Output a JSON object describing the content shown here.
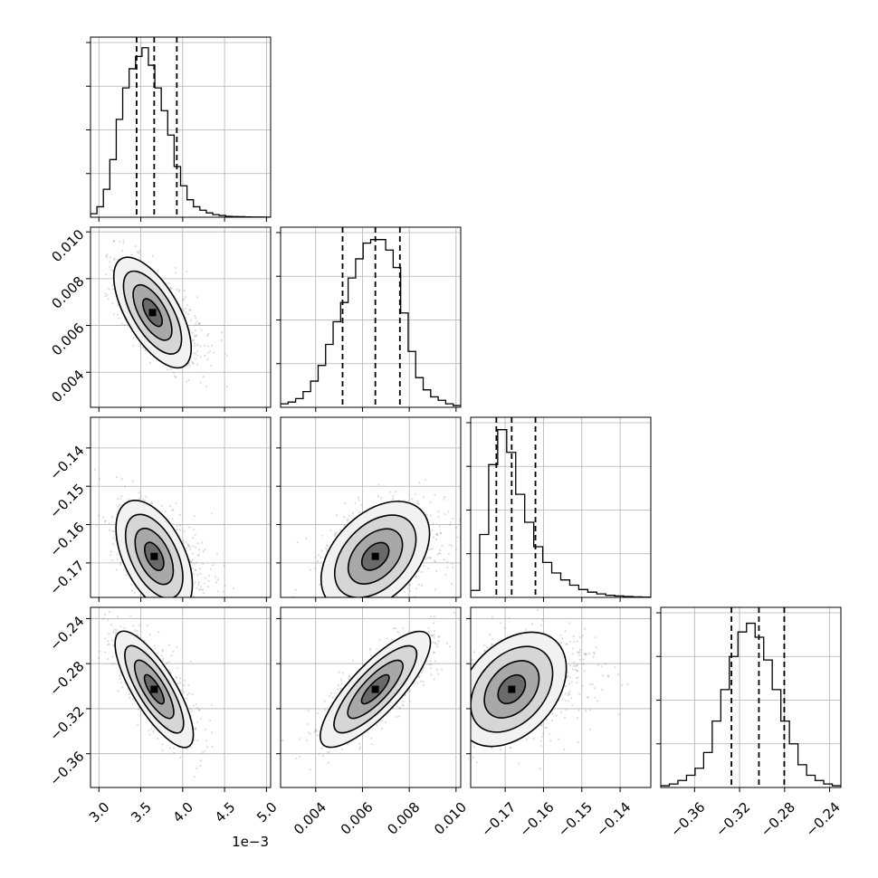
{
  "chart_data": {
    "type": "corner",
    "parameters": [
      {
        "name": "",
        "range": [
          2.9,
          5.05
        ],
        "scale_label": "1e−3",
        "ticks": [
          3.0,
          3.5,
          4.0,
          4.5,
          5.0
        ],
        "tick_labels": [
          "3.0",
          "3.5",
          "4.0",
          "4.5",
          "5.0"
        ],
        "quantiles": [
          3.45,
          3.66,
          3.93
        ],
        "hist_counts": [
          0.02,
          0.06,
          0.16,
          0.33,
          0.56,
          0.74,
          0.85,
          0.92,
          0.97,
          0.87,
          0.74,
          0.61,
          0.47,
          0.29,
          0.18,
          0.1,
          0.06,
          0.04,
          0.025,
          0.015,
          0.01,
          0.005,
          0.004,
          0.003,
          0.002,
          0.001,
          0.001,
          0.0005
        ]
      },
      {
        "name": "",
        "range": [
          0.0025,
          0.0102
        ],
        "scale_label": "",
        "ticks": [
          0.004,
          0.006,
          0.008,
          0.01
        ],
        "tick_labels": [
          "0.004",
          "0.006",
          "0.008",
          "0.010"
        ],
        "quantiles": [
          0.00515,
          0.00655,
          0.0076
        ],
        "hist_counts": [
          0.02,
          0.03,
          0.05,
          0.09,
          0.15,
          0.24,
          0.36,
          0.49,
          0.6,
          0.74,
          0.85,
          0.94,
          0.96,
          0.96,
          0.9,
          0.8,
          0.54,
          0.32,
          0.17,
          0.1,
          0.06,
          0.04,
          0.02,
          0.01
        ]
      },
      {
        "name": "",
        "range": [
          -0.179,
          -0.132
        ],
        "scale_label": "",
        "ticks": [
          -0.17,
          -0.16,
          -0.15,
          -0.14
        ],
        "tick_labels": [
          "−0.17",
          "−0.16",
          "−0.15",
          "−0.14"
        ],
        "quantiles": [
          -0.1723,
          -0.1683,
          -0.1621
        ],
        "hist_counts": [
          0.04,
          0.36,
          0.76,
          0.96,
          0.83,
          0.59,
          0.43,
          0.29,
          0.2,
          0.14,
          0.1,
          0.07,
          0.045,
          0.03,
          0.02,
          0.012,
          0.008,
          0.005,
          0.003,
          0.002
        ]
      },
      {
        "name": "",
        "range": [
          -0.39,
          -0.23
        ],
        "scale_label": "",
        "ticks": [
          -0.36,
          -0.32,
          -0.28,
          -0.24
        ],
        "tick_labels": [
          "−0.36",
          "−0.32",
          "−0.28",
          "−0.24"
        ],
        "quantiles": [
          -0.3272,
          -0.3028,
          -0.2803
        ],
        "hist_counts": [
          0.01,
          0.02,
          0.04,
          0.07,
          0.11,
          0.2,
          0.38,
          0.56,
          0.75,
          0.89,
          0.94,
          0.86,
          0.73,
          0.56,
          0.38,
          0.25,
          0.13,
          0.07,
          0.04,
          0.02,
          0.01
        ]
      }
    ],
    "pairs": [
      {
        "x": 0,
        "y": 1,
        "center": [
          3.64,
          0.00655
        ],
        "sigma": [
          0.22,
          0.0011
        ],
        "rho": -0.6,
        "skew": 0.35
      },
      {
        "x": 0,
        "y": 2,
        "center": [
          3.66,
          -0.1683
        ],
        "sigma": [
          0.22,
          0.0068
        ],
        "rho": -0.45,
        "skew": 0.5
      },
      {
        "x": 1,
        "y": 2,
        "center": [
          0.00655,
          -0.1683
        ],
        "sigma": [
          0.0011,
          0.0068
        ],
        "rho": 0.35,
        "skew": 0.5
      },
      {
        "x": 0,
        "y": 3,
        "center": [
          3.66,
          -0.3028
        ],
        "sigma": [
          0.22,
          0.024
        ],
        "rho": -0.75,
        "skew": 0.2
      },
      {
        "x": 1,
        "y": 3,
        "center": [
          0.00655,
          -0.3028
        ],
        "sigma": [
          0.0011,
          0.024
        ],
        "rho": 0.78,
        "skew": 0.2
      },
      {
        "x": 2,
        "y": 3,
        "center": [
          -0.1683,
          -0.3028
        ],
        "sigma": [
          0.0068,
          0.024
        ],
        "rho": 0.3,
        "skew": 0.5
      }
    ],
    "contour_levels_sigma": [
      0.5,
      1.0,
      1.5,
      2.0
    ],
    "grid": true
  }
}
